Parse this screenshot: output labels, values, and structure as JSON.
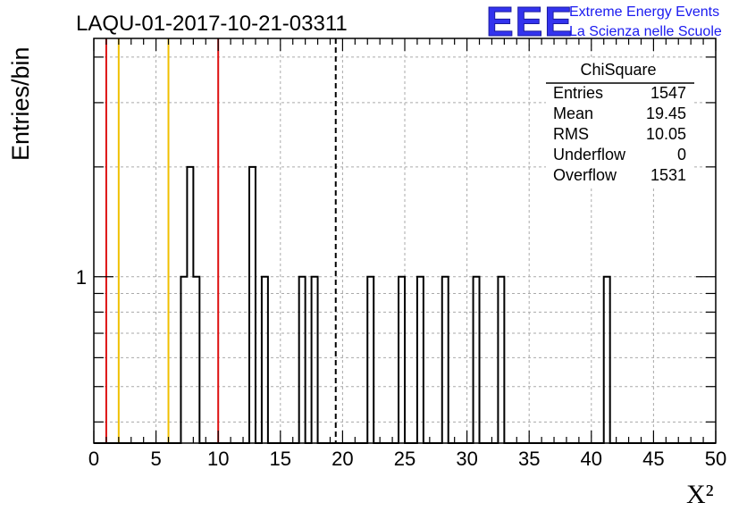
{
  "title": "LAQU-01-2017-10-21-03311",
  "logo": {
    "text": "EEE",
    "line1": "Extreme Energy Events",
    "line2": "La Scienza nelle Scuole",
    "color": "#2222ee"
  },
  "stats": {
    "name": "ChiSquare",
    "rows": [
      {
        "label": "Entries",
        "value": "1547"
      },
      {
        "label": "Mean",
        "value": "19.45"
      },
      {
        "label": "RMS",
        "value": "10.05"
      },
      {
        "label": "Underflow",
        "value": "0"
      },
      {
        "label": "Overflow",
        "value": "1531"
      }
    ]
  },
  "chart_data": {
    "type": "bar",
    "histogram_style": "step",
    "title": "LAQU-01-2017-10-21-03311",
    "xlabel": "X²",
    "ylabel": "Entries/bin",
    "xlim": [
      0,
      50
    ],
    "ylim_log": true,
    "ylim": [
      0.35,
      4.5
    ],
    "bin_width": 0.5,
    "x_ticks": [
      "0",
      "5",
      "10",
      "15",
      "20",
      "25",
      "30",
      "35",
      "40",
      "45",
      "50"
    ],
    "y_tick_labels": [
      "1"
    ],
    "grid": true,
    "bins": [
      {
        "x": 7.0,
        "count": 1
      },
      {
        "x": 7.5,
        "count": 2
      },
      {
        "x": 8.0,
        "count": 1
      },
      {
        "x": 12.5,
        "count": 2
      },
      {
        "x": 13.5,
        "count": 1
      },
      {
        "x": 16.5,
        "count": 1
      },
      {
        "x": 17.5,
        "count": 1
      },
      {
        "x": 22.0,
        "count": 1
      },
      {
        "x": 24.5,
        "count": 1
      },
      {
        "x": 26.0,
        "count": 1
      },
      {
        "x": 28.0,
        "count": 1
      },
      {
        "x": 30.5,
        "count": 1
      },
      {
        "x": 32.5,
        "count": 1
      },
      {
        "x": 41.0,
        "count": 1
      }
    ],
    "vertical_lines": [
      {
        "x": 1,
        "color": "#dd1111",
        "style": "solid"
      },
      {
        "x": 2,
        "color": "#f0c000",
        "style": "solid"
      },
      {
        "x": 6,
        "color": "#f0c000",
        "style": "solid"
      },
      {
        "x": 10,
        "color": "#dd1111",
        "style": "solid"
      },
      {
        "x": 19.45,
        "color": "#000000",
        "style": "dashed"
      }
    ]
  }
}
